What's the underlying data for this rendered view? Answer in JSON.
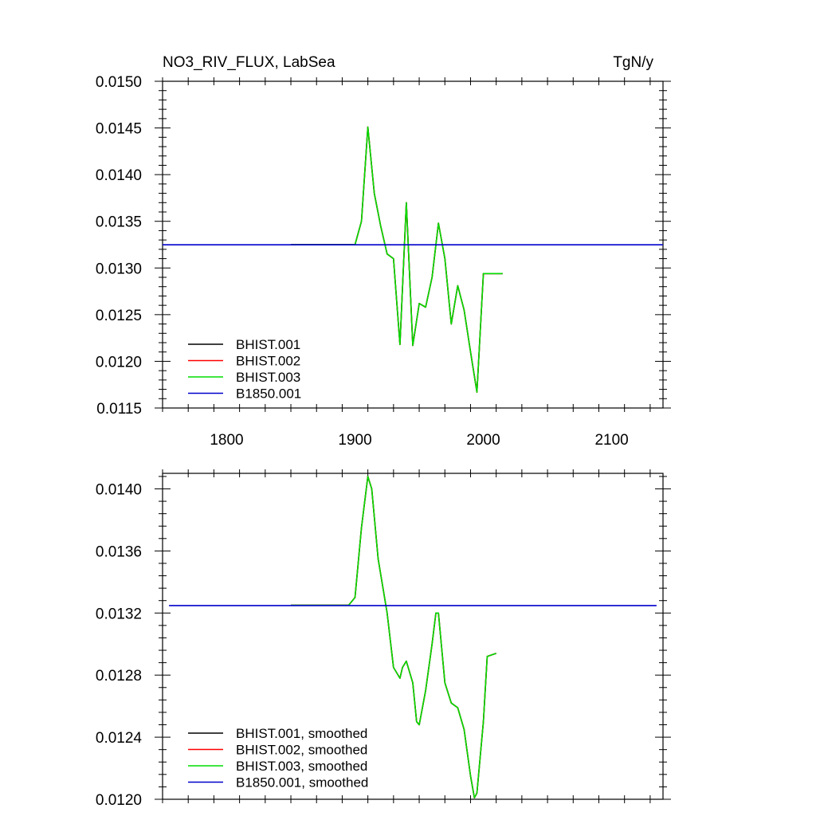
{
  "chart_data": [
    {
      "type": "line",
      "title": "NO3_RIV_FLUX, LabSea",
      "units": "TgN/y",
      "xlim": [
        1750,
        2140
      ],
      "ylim": [
        0.0115,
        0.015
      ],
      "xticks": [
        1800,
        1900,
        2000,
        2100
      ],
      "yticks": [
        0.0115,
        0.012,
        0.0125,
        0.013,
        0.0135,
        0.014,
        0.0145,
        0.015
      ],
      "ytick_labels": [
        "0.0115",
        "0.0120",
        "0.0125",
        "0.0130",
        "0.0135",
        "0.0140",
        "0.0145",
        "0.0150"
      ],
      "grid": false,
      "legend": "bottom-left",
      "series": [
        {
          "name": "BHIST.001",
          "color": "#000000",
          "x": [
            1850,
            1900,
            1905,
            1910,
            1915,
            1920,
            1925,
            1930,
            1935,
            1940,
            1945,
            1950,
            1955,
            1960,
            1965,
            1970,
            1975,
            1980,
            1985,
            1990,
            1995,
            2000,
            2015
          ],
          "y": [
            0.01325,
            0.01325,
            0.0135,
            0.01451,
            0.0138,
            0.01345,
            0.01315,
            0.0131,
            0.01218,
            0.0137,
            0.01217,
            0.01262,
            0.01258,
            0.0129,
            0.01348,
            0.0131,
            0.0124,
            0.01281,
            0.01255,
            0.0121,
            0.01167,
            0.01294,
            0.01294
          ]
        },
        {
          "name": "BHIST.002",
          "color": "#ff0000",
          "x": [
            1850,
            1900,
            1905,
            1910,
            1915,
            1920,
            1925,
            1930,
            1935,
            1940,
            1945,
            1950,
            1955,
            1960,
            1965,
            1970,
            1975,
            1980,
            1985,
            1990,
            1995,
            2000,
            2015
          ],
          "y": [
            0.01325,
            0.01325,
            0.0135,
            0.01451,
            0.0138,
            0.01345,
            0.01315,
            0.0131,
            0.01218,
            0.0137,
            0.01217,
            0.01262,
            0.01258,
            0.0129,
            0.01348,
            0.0131,
            0.0124,
            0.01281,
            0.01255,
            0.0121,
            0.01167,
            0.01294,
            0.01294
          ]
        },
        {
          "name": "BHIST.003",
          "color": "#00dd00",
          "x": [
            1850,
            1900,
            1905,
            1910,
            1915,
            1920,
            1925,
            1930,
            1935,
            1940,
            1945,
            1950,
            1955,
            1960,
            1965,
            1970,
            1975,
            1980,
            1985,
            1990,
            1995,
            2000,
            2015
          ],
          "y": [
            0.01325,
            0.01325,
            0.0135,
            0.01451,
            0.0138,
            0.01345,
            0.01315,
            0.0131,
            0.01218,
            0.0137,
            0.01217,
            0.01262,
            0.01258,
            0.0129,
            0.01348,
            0.0131,
            0.0124,
            0.01281,
            0.01255,
            0.0121,
            0.01167,
            0.01294,
            0.01294
          ]
        },
        {
          "name": "B1850.001",
          "color": "#0000cc",
          "x": [
            1750,
            2140
          ],
          "y": [
            0.013248,
            0.013248
          ]
        }
      ]
    },
    {
      "type": "line",
      "title": "",
      "xlim": [
        1750,
        2140
      ],
      "ylim": [
        0.012,
        0.0141
      ],
      "xticks": [
        1800,
        1900,
        2000,
        2100
      ],
      "yticks": [
        0.012,
        0.0124,
        0.0128,
        0.0132,
        0.0136,
        0.014
      ],
      "ytick_labels": [
        "0.0120",
        "0.0124",
        "0.0128",
        "0.0132",
        "0.0136",
        "0.0140"
      ],
      "grid": false,
      "legend": "bottom-left",
      "series": [
        {
          "name": "BHIST.001, smoothed",
          "color": "#000000",
          "x": [
            1850,
            1895,
            1900,
            1905,
            1910,
            1913,
            1918,
            1925,
            1930,
            1935,
            1937,
            1940,
            1945,
            1948,
            1950,
            1955,
            1960,
            1963,
            1965,
            1970,
            1975,
            1980,
            1985,
            1990,
            1993,
            1995,
            2000,
            2003,
            2010
          ],
          "y": [
            0.01325,
            0.01325,
            0.0133,
            0.01375,
            0.01408,
            0.014,
            0.01355,
            0.0132,
            0.01285,
            0.01278,
            0.01285,
            0.01289,
            0.01275,
            0.0125,
            0.01248,
            0.0127,
            0.013,
            0.0132,
            0.0132,
            0.01275,
            0.01262,
            0.01259,
            0.01245,
            0.01215,
            0.01201,
            0.01204,
            0.0125,
            0.01292,
            0.01294
          ]
        },
        {
          "name": "BHIST.002, smoothed",
          "color": "#ff0000",
          "x": [
            1850,
            1895,
            1900,
            1905,
            1910,
            1913,
            1918,
            1925,
            1930,
            1935,
            1937,
            1940,
            1945,
            1948,
            1950,
            1955,
            1960,
            1963,
            1965,
            1970,
            1975,
            1980,
            1985,
            1990,
            1993,
            1995,
            2000,
            2003,
            2010
          ],
          "y": [
            0.01325,
            0.01325,
            0.0133,
            0.01375,
            0.01408,
            0.014,
            0.01355,
            0.0132,
            0.01285,
            0.01278,
            0.01285,
            0.01289,
            0.01275,
            0.0125,
            0.01248,
            0.0127,
            0.013,
            0.0132,
            0.0132,
            0.01275,
            0.01262,
            0.01259,
            0.01245,
            0.01215,
            0.01201,
            0.01204,
            0.0125,
            0.01292,
            0.01294
          ]
        },
        {
          "name": "BHIST.003, smoothed",
          "color": "#00dd00",
          "x": [
            1850,
            1895,
            1900,
            1905,
            1910,
            1913,
            1918,
            1925,
            1930,
            1935,
            1937,
            1940,
            1945,
            1948,
            1950,
            1955,
            1960,
            1963,
            1965,
            1970,
            1975,
            1980,
            1985,
            1990,
            1993,
            1995,
            2000,
            2003,
            2010
          ],
          "y": [
            0.01325,
            0.01325,
            0.0133,
            0.01375,
            0.01408,
            0.014,
            0.01355,
            0.0132,
            0.01285,
            0.01278,
            0.01285,
            0.01289,
            0.01275,
            0.0125,
            0.01248,
            0.0127,
            0.013,
            0.0132,
            0.0132,
            0.01275,
            0.01262,
            0.01259,
            0.01245,
            0.01215,
            0.01201,
            0.01204,
            0.0125,
            0.01292,
            0.01294
          ]
        },
        {
          "name": "B1850.001, smoothed",
          "color": "#0000cc",
          "x": [
            1755,
            2135
          ],
          "y": [
            0.013248,
            0.013248
          ]
        }
      ]
    }
  ]
}
